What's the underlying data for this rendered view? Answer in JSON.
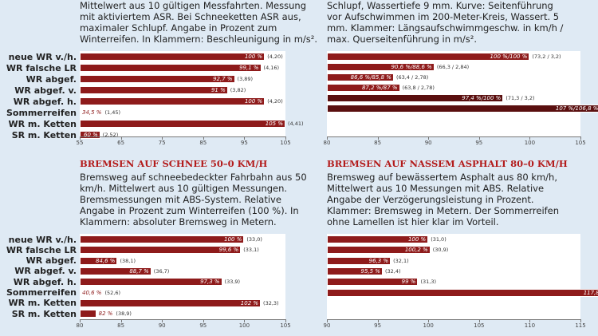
{
  "chart_data": [
    {
      "type": "bar",
      "description": "Mittelwert aus 10 gültigen Messfahrten. Messung mit aktiviertem ASR. Bei Schneeketten ASR aus, maximaler Schlupf. Angabe in Prozent zum Winterreifen. In Klammern: Beschleunigung in m/s².",
      "categories": [
        "neue WR v./h.",
        "WR falsche LR",
        "WR abgef.",
        "WR abgef. v.",
        "WR abgef. h.",
        "Sommerreifen",
        "WR m. Ketten",
        "SR m. Ketten"
      ],
      "values": [
        100,
        99.1,
        92.7,
        91,
        100,
        34.5,
        105,
        60
      ],
      "value_labels": [
        "100 %",
        "99,1 %",
        "92,7 %",
        "91 %",
        "100 %",
        "34,5 %",
        "105 %",
        "60 %"
      ],
      "bracket_labels": [
        "(4,20)",
        "(4,16)",
        "(3,89)",
        "(3,82)",
        "(4,20)",
        "(1,45)",
        "(4,41)",
        "(2,52)"
      ],
      "colors": [
        "#8e1b1b",
        "#8e1b1b",
        "#8e1b1b",
        "#8e1b1b",
        "#8e1b1b",
        "#8e1b1b",
        "#8e1b1b",
        "#8e1b1b"
      ],
      "xlim": [
        55,
        105
      ],
      "xticks": [
        55,
        65,
        75,
        85,
        95,
        105
      ]
    },
    {
      "type": "bar",
      "description": "Schlupf, Wassertiefe 9 mm. Kurve: Seitenführung vor Aufschwimmen im 200-Meter-Kreis, Wassert. 5 mm. Klammer: Längsaufschwimmgeschw. in km/h / max. Querseitenführung in m/s².",
      "values": [
        100,
        90.6,
        86.6,
        87.2,
        97.4,
        107
      ],
      "value_labels": [
        "100 %/100 %",
        "90,6 %/88,6 %",
        "86,6 %/85,8 %",
        "87,2 %/87 %",
        "97,4 %/100 %",
        "107 %/106,8 %"
      ],
      "bracket_labels": [
        "(73,2 / 3,2)",
        "(66,3 / 2,84)",
        "(63,4 / 2,78)",
        "(63,8 / 2,78)",
        "(71,3 / 3,2)",
        "(78,3 / 3,42)"
      ],
      "colors": [
        "#8e1b1b",
        "#8e1b1b",
        "#8e1b1b",
        "#8e1b1b",
        "#5a0f0f",
        "#5a0f0f"
      ],
      "xlim": [
        80,
        105
      ],
      "xticks": [
        80,
        85,
        90,
        95,
        100,
        105
      ]
    },
    {
      "type": "bar",
      "title": "BREMSEN AUF SCHNEE 50–0 KM/H",
      "description": "Bremsweg auf schneebedeckter Fahrbahn aus 50 km/h. Mittelwert aus 10 gültigen Messungen. Bremsmessungen mit ABS-System. Relative Angabe in Prozent zum Winterreifen (100 %). In Klammern: absoluter Bremsweg in Metern.",
      "categories": [
        "neue WR v./h.",
        "WR falsche LR",
        "WR abgef.",
        "WR abgef. v.",
        "WR abgef. h.",
        "Sommerreifen",
        "WR m. Ketten",
        "SR m. Ketten"
      ],
      "values": [
        100,
        99.6,
        84.6,
        88.7,
        97.3,
        40.6,
        102,
        82
      ],
      "value_labels": [
        "100 %",
        "99,6 %",
        "84,6 %",
        "88,7 %",
        "97,3 %",
        "40,6 %",
        "102 %",
        "82 %"
      ],
      "bracket_labels": [
        "(33,0)",
        "(33,1)",
        "(38,1)",
        "(36,7)",
        "(33,9)",
        "(52,6)",
        "(32,3)",
        "(38,9)"
      ],
      "colors": [
        "#8e1b1b",
        "#8e1b1b",
        "#8e1b1b",
        "#8e1b1b",
        "#8e1b1b",
        "#8e1b1b",
        "#8e1b1b",
        "#8e1b1b"
      ],
      "xlim": [
        80,
        105
      ],
      "xticks": [
        80,
        85,
        90,
        95,
        100,
        105
      ]
    },
    {
      "type": "bar",
      "title": "BREMSEN AUF NASSEM ASPHALT 80–0 KM/H",
      "description": "Bremsweg auf bewässertem Asphalt aus 80 km/h, Mittelwert aus 10 Messungen mit ABS. Relative Angabe der Verzögerungsleistung in Prozent. Klammer: Bremsweg in Metern. Der Sommerreifen ohne Lamellen ist hier klar im Vorteil.",
      "values": [
        100,
        100.2,
        96.3,
        95.5,
        99,
        117.8
      ],
      "value_labels": [
        "100 %",
        "100,2 %",
        "96,3 %",
        "95,5 %",
        "99 %",
        "117,8 %"
      ],
      "bracket_labels": [
        "(31,0)",
        "(30,9)",
        "(32,1)",
        "(32,4)",
        "(31,3)",
        "(25,5)"
      ],
      "colors": [
        "#8e1b1b",
        "#8e1b1b",
        "#8e1b1b",
        "#8e1b1b",
        "#8e1b1b",
        "#8e1b1b"
      ],
      "xlim": [
        90,
        115
      ],
      "xticks": [
        90,
        95,
        100,
        105,
        110,
        115
      ]
    }
  ]
}
